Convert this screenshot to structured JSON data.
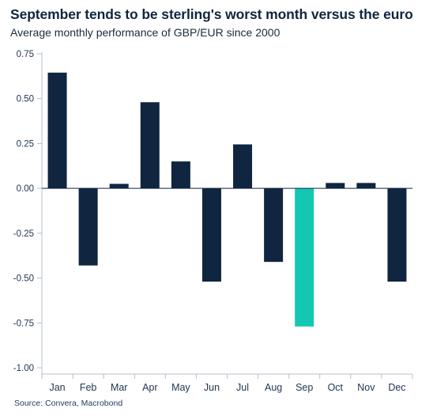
{
  "title": "September tends to be sterling's worst month versus the euro",
  "subtitle": "Average monthly performance of GBP/EUR since 2000",
  "source": "Source: Convera, Macrobond",
  "chart_data": {
    "type": "bar",
    "categories": [
      "Jan",
      "Feb",
      "Mar",
      "Apr",
      "May",
      "Jun",
      "Jul",
      "Aug",
      "Sep",
      "Oct",
      "Nov",
      "Dec"
    ],
    "values": [
      0.645,
      -0.43,
      0.025,
      0.48,
      0.15,
      -0.52,
      0.245,
      -0.41,
      -0.77,
      0.03,
      0.03,
      -0.52
    ],
    "highlight_category": "Sep",
    "ylim": [
      -1.0,
      0.75
    ],
    "yticks": [
      0.75,
      0.5,
      0.25,
      0.0,
      -0.25,
      -0.5,
      -0.75,
      -1.0
    ],
    "ytick_labels": [
      "0.75",
      "0.50",
      "0.25",
      "0.00",
      "-0.25",
      "-0.50",
      "-0.75",
      "-1.00"
    ],
    "xlabel": "",
    "ylabel": "",
    "grid": false,
    "colors": {
      "bar": "#0f2540",
      "highlight": "#13c7b3",
      "axis": "#b5c0cc"
    }
  }
}
